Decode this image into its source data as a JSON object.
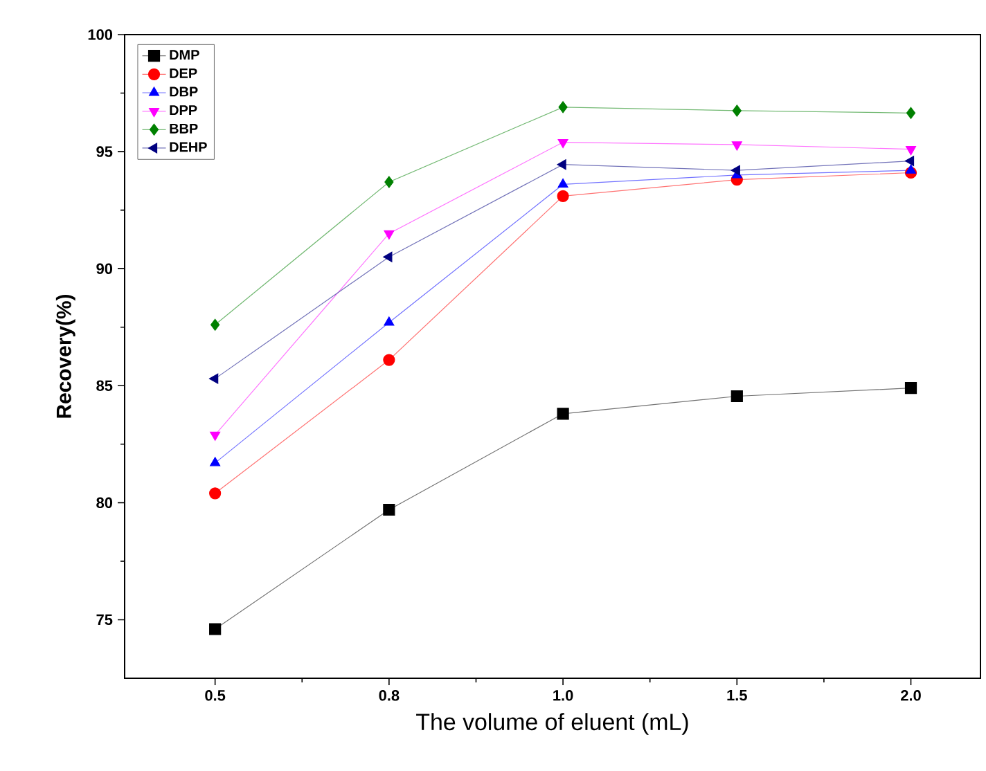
{
  "chart_data": {
    "type": "line",
    "xlabel": "The volume of eluent (mL)",
    "ylabel": "Recovery(%)",
    "categories": [
      "0.5",
      "0.8",
      "1.0",
      "1.5",
      "2.0"
    ],
    "ylim": [
      72.5,
      100
    ],
    "yticks": [
      75,
      80,
      85,
      90,
      95,
      100
    ],
    "grid": false,
    "legend": "top left",
    "series": [
      {
        "name": "DMP",
        "color": "#000000",
        "marker": "square",
        "values": [
          74.6,
          79.7,
          83.8,
          84.55,
          84.9
        ]
      },
      {
        "name": "DEP",
        "color": "#ff0000",
        "marker": "circle",
        "values": [
          80.4,
          86.1,
          93.1,
          93.8,
          94.1
        ]
      },
      {
        "name": "DBP",
        "color": "#0000ff",
        "marker": "triangle",
        "values": [
          81.7,
          87.7,
          93.6,
          94.0,
          94.2
        ]
      },
      {
        "name": "DPP",
        "color": "#ff00ff",
        "marker": "triangle-down",
        "values": [
          82.9,
          91.5,
          95.4,
          95.3,
          95.1
        ]
      },
      {
        "name": "BBP",
        "color": "#008000",
        "marker": "diamond",
        "values": [
          87.6,
          93.7,
          96.9,
          96.75,
          96.65
        ]
      },
      {
        "name": "DEHP",
        "color": "#000080",
        "marker": "triangle-left",
        "values": [
          85.3,
          90.5,
          94.45,
          94.2,
          94.6
        ]
      }
    ]
  }
}
